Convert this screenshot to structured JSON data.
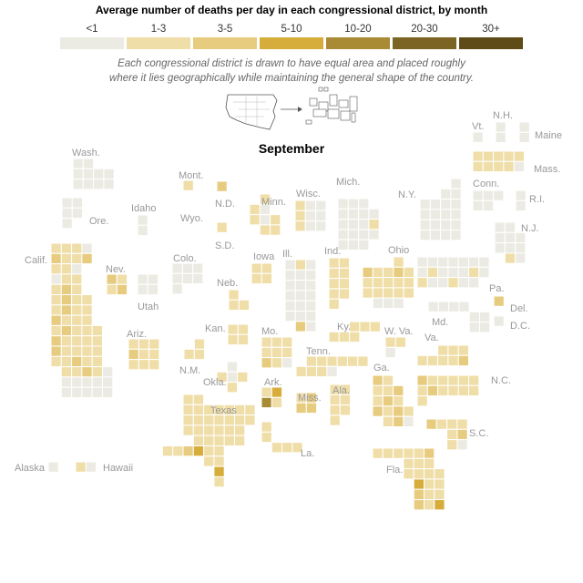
{
  "title": "Average number of deaths per day in each congressional district, by month",
  "legend": [
    {
      "label": "<1",
      "color": "#ecebe3"
    },
    {
      "label": "1-3",
      "color": "#f0dea8"
    },
    {
      "label": "3-5",
      "color": "#e7cc80"
    },
    {
      "label": "5-10",
      "color": "#d6ad3a"
    },
    {
      "label": "10-20",
      "color": "#a98b35"
    },
    {
      "label": "20-30",
      "color": "#7c6424"
    },
    {
      "label": "30+",
      "color": "#5f4b17"
    }
  ],
  "subtitle_line1": "Each congressional district is drawn to have equal area and placed roughly",
  "subtitle_line2": "where it lies geographically while maintaining the general shape of the country.",
  "month": "September",
  "states": [
    {
      "name": "Wash.",
      "cls": [
        0,
        0,
        0,
        0,
        0,
        0,
        0,
        0,
        0,
        0
      ]
    },
    {
      "name": "Ore.",
      "cls": [
        0,
        0,
        0,
        0,
        0
      ]
    },
    {
      "name": "Calif.",
      "cls": [
        1,
        1,
        1,
        0,
        2,
        1,
        1,
        2,
        1,
        1,
        0,
        0,
        1,
        1,
        1,
        2,
        1,
        1,
        2,
        1,
        1,
        1,
        2,
        1,
        1,
        2,
        1,
        1,
        1,
        1,
        2,
        1,
        1,
        1,
        2,
        1,
        1,
        1,
        1,
        2,
        1,
        1,
        1,
        1,
        1,
        1,
        2,
        1,
        1,
        1,
        1,
        2,
        1
      ]
    },
    {
      "name": "Nev.",
      "cls": [
        2,
        1,
        1,
        2
      ]
    },
    {
      "name": "Utah",
      "cls": [
        0,
        0,
        0,
        0
      ]
    },
    {
      "name": "Idaho",
      "cls": [
        0,
        0
      ]
    },
    {
      "name": "Mont.",
      "cls": [
        1
      ]
    },
    {
      "name": "Wyo.",
      "cls": [
        0
      ]
    },
    {
      "name": "Colo.",
      "cls": [
        0,
        0,
        0,
        0,
        0,
        0,
        0
      ]
    },
    {
      "name": "Ariz.",
      "cls": [
        1,
        1,
        1,
        2,
        1,
        1,
        1,
        1,
        1
      ]
    },
    {
      "name": "N.M.",
      "cls": [
        1,
        1,
        1
      ]
    },
    {
      "name": "N.D.",
      "cls": [
        2
      ]
    },
    {
      "name": "S.D.",
      "cls": [
        1
      ]
    },
    {
      "name": "Neb.",
      "cls": [
        1,
        1,
        1
      ]
    },
    {
      "name": "Kan.",
      "cls": [
        1,
        1,
        1,
        1
      ]
    },
    {
      "name": "Okla.",
      "cls": [
        0,
        1,
        0,
        1,
        1
      ]
    },
    {
      "name": "Texas",
      "cls": [
        1,
        1,
        1,
        1,
        1,
        1,
        1,
        1,
        1,
        1,
        1,
        1,
        1,
        1,
        1,
        1,
        1,
        1,
        1,
        1,
        1,
        1,
        1,
        1,
        1,
        1,
        1,
        1,
        1,
        2,
        3,
        1,
        1,
        1,
        1,
        3,
        1,
        5,
        5
      ]
    },
    {
      "name": "Minn.",
      "cls": [
        1,
        1,
        0,
        1,
        0,
        1,
        1,
        1
      ]
    },
    {
      "name": "Iowa",
      "cls": [
        1,
        1,
        1,
        1
      ]
    },
    {
      "name": "Mo.",
      "cls": [
        1,
        1,
        1,
        1,
        1,
        1,
        2,
        1
      ]
    },
    {
      "name": "Ark.",
      "cls": [
        1,
        3,
        4,
        1
      ]
    },
    {
      "name": "La.",
      "cls": [
        1,
        1,
        1,
        1,
        1,
        1
      ]
    },
    {
      "name": "Wisc.",
      "cls": [
        1,
        0,
        0,
        1,
        0,
        0,
        1,
        0
      ]
    },
    {
      "name": "Ill.",
      "cls": [
        0,
        1,
        0,
        0,
        0,
        0,
        0,
        0,
        0,
        0,
        0,
        0,
        0,
        0,
        0,
        0,
        0,
        0,
        2
      ]
    },
    {
      "name": "Mich.",
      "cls": [
        0,
        0,
        0,
        0,
        0,
        0,
        0,
        0,
        0,
        0,
        1,
        0,
        0,
        0
      ]
    },
    {
      "name": "Ind.",
      "cls": [
        1,
        1,
        1,
        1,
        1,
        1,
        1,
        1,
        1
      ]
    },
    {
      "name": "Ohio",
      "cls": [
        1,
        2,
        1,
        1,
        2,
        1,
        1,
        1,
        1,
        1,
        1,
        1,
        1,
        1,
        1,
        1
      ]
    },
    {
      "name": "Ky.",
      "cls": [
        1,
        1,
        1,
        1,
        1,
        1
      ]
    },
    {
      "name": "Tenn.",
      "cls": [
        1,
        1,
        1,
        1,
        1,
        1,
        1,
        1,
        1
      ]
    },
    {
      "name": "Miss.",
      "cls": [
        1,
        2,
        2,
        2
      ]
    },
    {
      "name": "Ala.",
      "cls": [
        1,
        1,
        1,
        1,
        1,
        1,
        1
      ]
    },
    {
      "name": "Ga.",
      "cls": [
        2,
        1,
        1,
        1,
        2,
        1,
        2,
        1,
        2,
        1,
        2,
        1,
        1,
        2
      ]
    },
    {
      "name": "Fla.",
      "cls": [
        1,
        1,
        1,
        1,
        1,
        2,
        1,
        1,
        1,
        1,
        1,
        1,
        1,
        3,
        1,
        1,
        2,
        1,
        1,
        2,
        1,
        3,
        3,
        3,
        3,
        3,
        2
      ]
    },
    {
      "name": "S.C.",
      "cls": [
        2,
        1,
        1,
        1,
        1,
        2,
        1
      ]
    },
    {
      "name": "N.C.",
      "cls": [
        2,
        1,
        1,
        1,
        1,
        1,
        1,
        2,
        1,
        1,
        1,
        1,
        1
      ]
    },
    {
      "name": "Va.",
      "cls": [
        1,
        1,
        1,
        1,
        1,
        1,
        1,
        2,
        1,
        0,
        1
      ]
    },
    {
      "name": "W. Va.",
      "cls": [
        1,
        1,
        0
      ]
    },
    {
      "name": "Md.",
      "cls": [
        0,
        0,
        0,
        0,
        0,
        0,
        0,
        0
      ]
    },
    {
      "name": "Del.",
      "cls": [
        2
      ]
    },
    {
      "name": "D.C.",
      "cls": [
        0
      ]
    },
    {
      "name": "Pa.",
      "cls": [
        0,
        0,
        0,
        0,
        0,
        0,
        0,
        0,
        1,
        0,
        0,
        0,
        1,
        0,
        1,
        0,
        0,
        1
      ]
    },
    {
      "name": "N.Y.",
      "cls": [
        0,
        0,
        0,
        0,
        0,
        0,
        0,
        0,
        0,
        0,
        0,
        0,
        0,
        0,
        0,
        0,
        0,
        0,
        0,
        0,
        0,
        0,
        0,
        0,
        0,
        0,
        0
      ]
    },
    {
      "name": "N.J.",
      "cls": [
        0,
        0,
        0,
        0,
        0,
        0,
        0,
        0,
        1,
        0,
        0,
        1
      ]
    },
    {
      "name": "Conn.",
      "cls": [
        0,
        0,
        0,
        0,
        0
      ]
    },
    {
      "name": "R.I.",
      "cls": [
        0,
        0
      ]
    },
    {
      "name": "Mass.",
      "cls": [
        1,
        1,
        1,
        1,
        1,
        1,
        1,
        1,
        1
      ]
    },
    {
      "name": "Vt.",
      "cls": [
        0
      ]
    },
    {
      "name": "N.H.",
      "cls": [
        0,
        0
      ]
    },
    {
      "name": "Maine",
      "cls": [
        0,
        0
      ]
    },
    {
      "name": "Alaska",
      "cls": [
        0
      ]
    },
    {
      "name": "Hawaii",
      "cls": [
        1,
        0
      ]
    }
  ]
}
